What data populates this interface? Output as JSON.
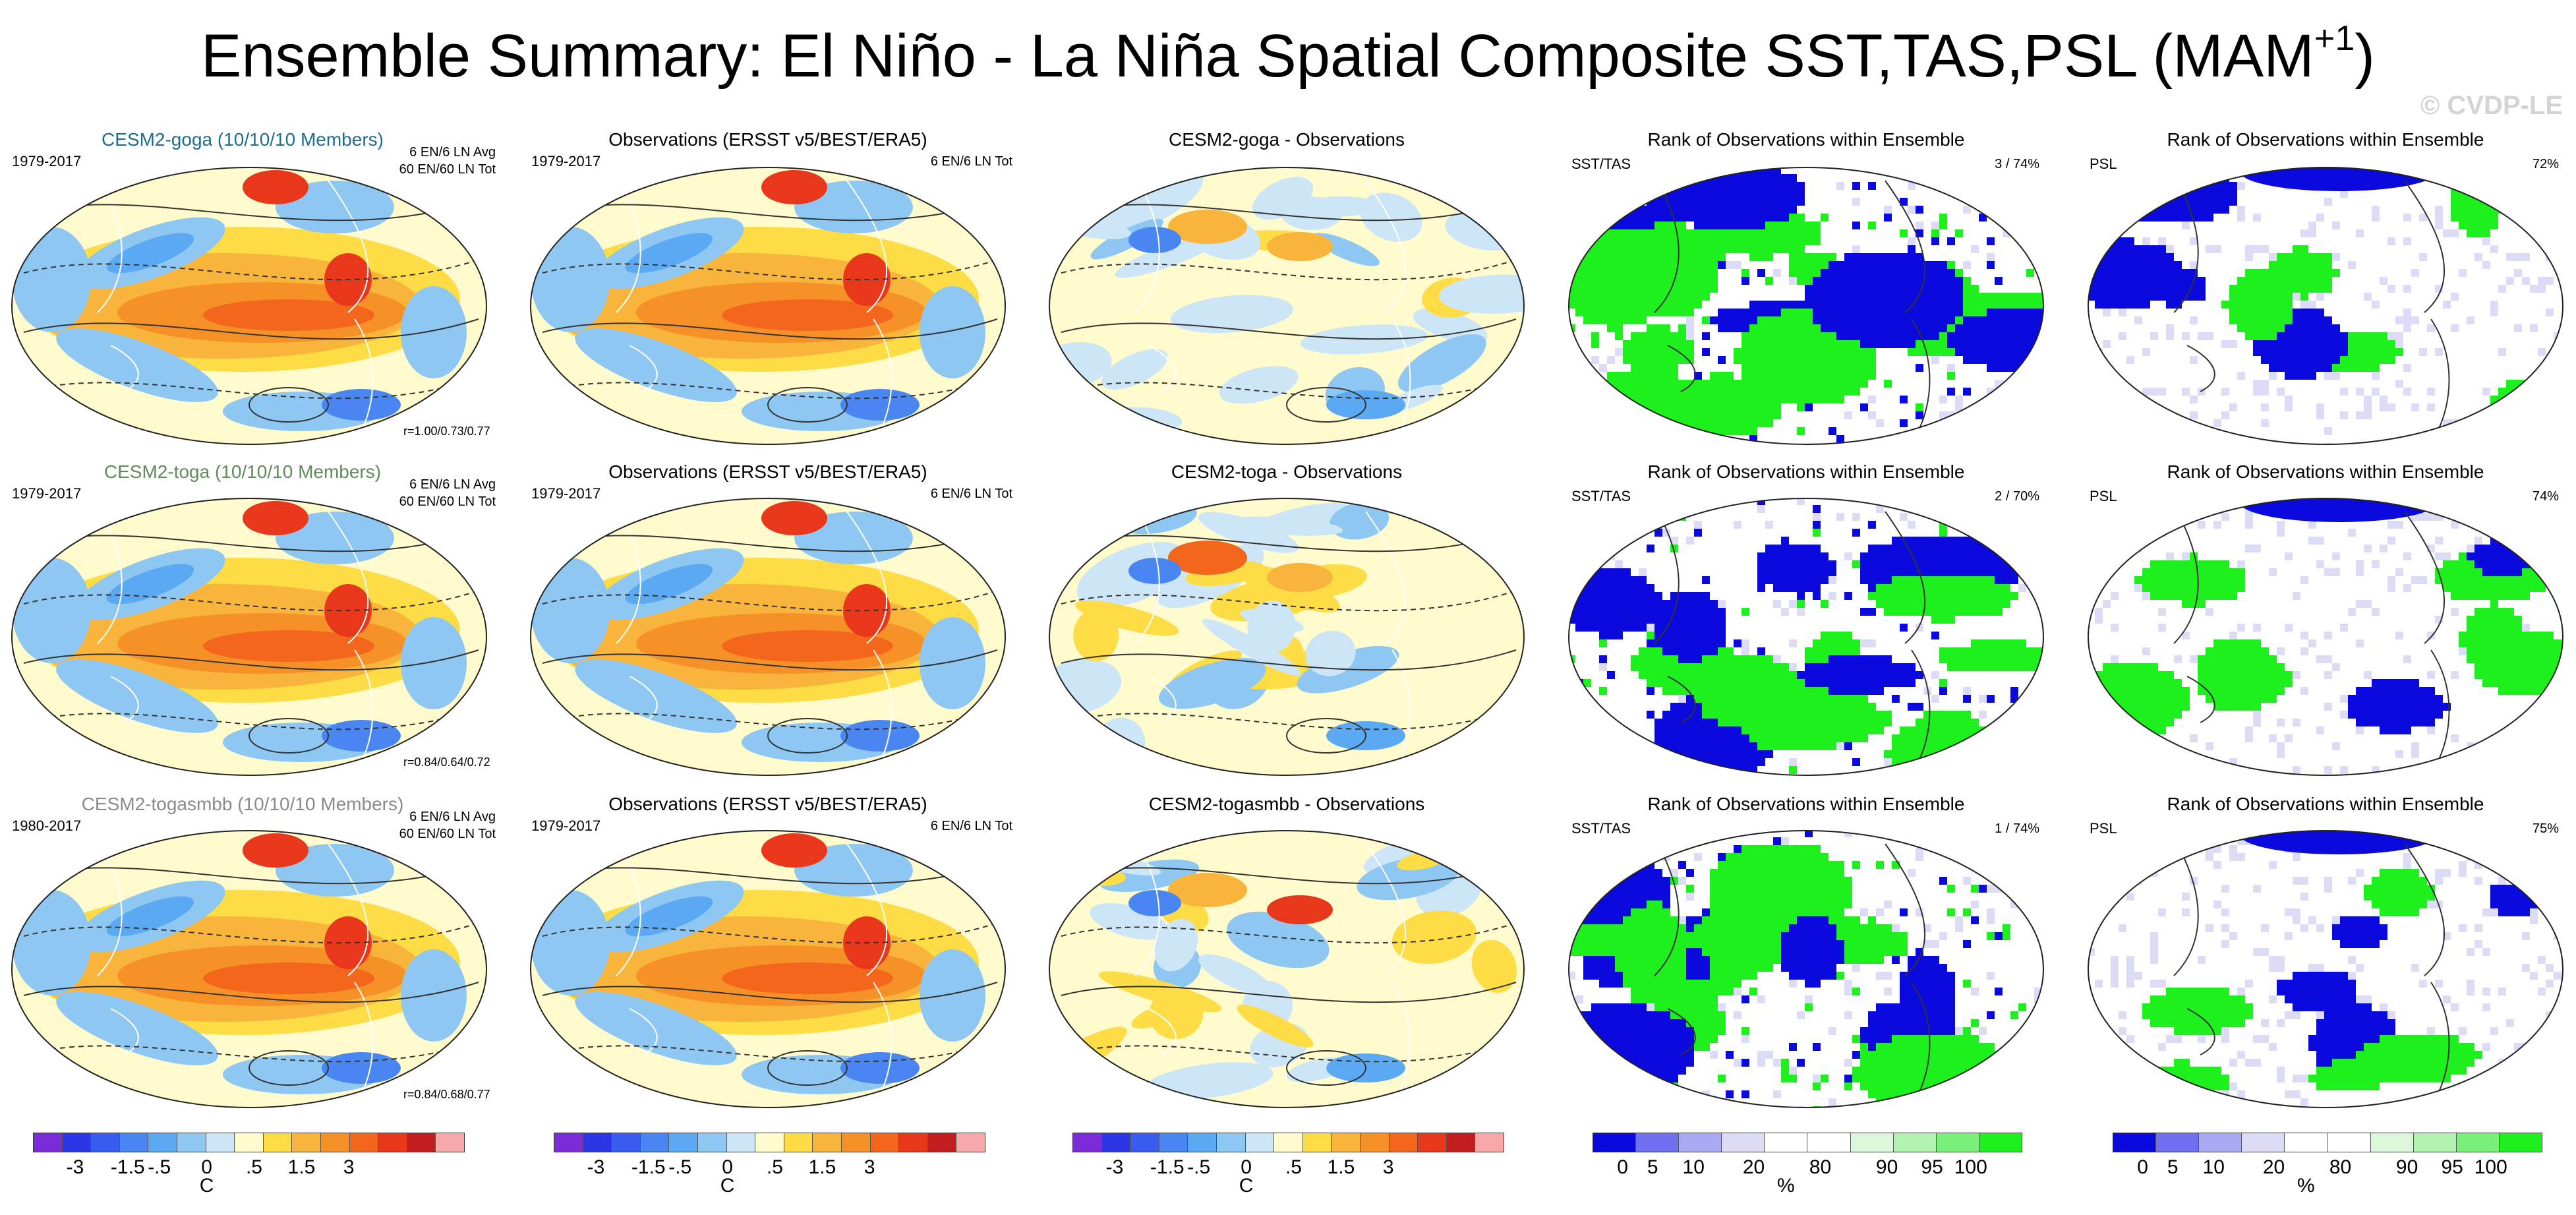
{
  "page": {
    "title": "Ensemble Summary: El Niño - La Niña Spatial Composite SST,TAS,PSL (MAM",
    "title_sup": "+1",
    "title_close": ")",
    "watermark": "© CVDP-LE"
  },
  "colors": {
    "sst_scale": [
      "#7b2bd8",
      "#2b35e6",
      "#3a5bf0",
      "#4a86f2",
      "#5aa9f2",
      "#8ec8f2",
      "#cce6f7",
      "#fffbcc",
      "#fddc45",
      "#f9b43c",
      "#f69128",
      "#f3661c",
      "#e8371a",
      "#c41d1d",
      "#f7a8a8"
    ],
    "rank_scale": [
      "#0a0adf",
      "#6f6ff0",
      "#a9a9f2",
      "#dcdcf7",
      "#ffffff",
      "#ffffff",
      "#dcf7dc",
      "#b1f2b1",
      "#7af07a",
      "#1ef01e"
    ]
  },
  "rows": [
    {
      "c1": {
        "title": "CESM2-goga (10/10/10 Members)",
        "title_color": "#1e6d8c",
        "period": "1979-2017",
        "info_a": "6 EN/6 LN Avg",
        "info_b": "60 EN/60 LN Tot",
        "r": "r=1.00/0.73/0.77"
      },
      "c2": {
        "title": "Observations (ERSST v5/BEST/ERA5)",
        "period": "1979-2017",
        "info": "6 EN/6 LN Tot"
      },
      "c3": {
        "title": "CESM2-goga - Observations"
      },
      "c4": {
        "title": "Rank of Observations within Ensemble",
        "label": "SST/TAS",
        "pct": "3 /  74%"
      },
      "c5": {
        "title": "Rank of Observations within Ensemble",
        "label": "PSL",
        "pct": "72%"
      }
    },
    {
      "c1": {
        "title": "CESM2-toga (10/10/10 Members)",
        "title_color": "#5f8a5a",
        "period": "1979-2017",
        "info_a": "6 EN/6 LN Avg",
        "info_b": "60 EN/60 LN Tot",
        "r": "r=0.84/0.64/0.72"
      },
      "c2": {
        "title": "Observations (ERSST v5/BEST/ERA5)",
        "period": "1979-2017",
        "info": "6 EN/6 LN Tot"
      },
      "c3": {
        "title": "CESM2-toga - Observations"
      },
      "c4": {
        "title": "Rank of Observations within Ensemble",
        "label": "SST/TAS",
        "pct": "2 /  70%"
      },
      "c5": {
        "title": "Rank of Observations within Ensemble",
        "label": "PSL",
        "pct": "74%"
      }
    },
    {
      "c1": {
        "title": "CESM2-togasmbb (10/10/10 Members)",
        "title_color": "#8a8a8a",
        "period": "1980-2017",
        "info_a": "6 EN/6 LN Avg",
        "info_b": "60 EN/60 LN Tot",
        "r": "r=0.84/0.68/0.77"
      },
      "c2": {
        "title": "Observations (ERSST v5/BEST/ERA5)",
        "period": "1979-2017",
        "info": "6 EN/6 LN Tot"
      },
      "c3": {
        "title": "CESM2-togasmbb - Observations"
      },
      "c4": {
        "title": "Rank of Observations within Ensemble",
        "label": "SST/TAS",
        "pct": "1 /  74%"
      },
      "c5": {
        "title": "Rank of Observations within Ensemble",
        "label": "PSL",
        "pct": "75%"
      }
    }
  ],
  "colorbars": {
    "sst": {
      "ticks": [
        "-3",
        "-1.5",
        "-.5",
        "0",
        ".5",
        "1.5",
        "3"
      ],
      "unit": "C"
    },
    "rank": {
      "ticks": [
        "0",
        "5",
        "10",
        "20",
        "80",
        "90",
        "95",
        "100"
      ],
      "unit": "%"
    }
  }
}
